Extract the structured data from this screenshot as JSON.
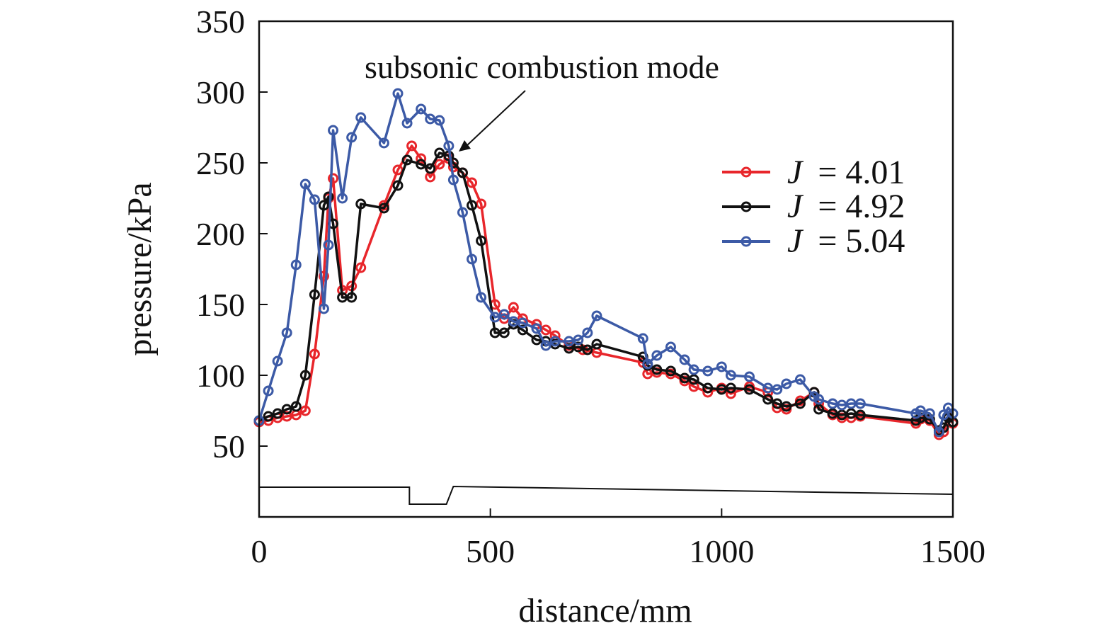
{
  "chart_data": {
    "type": "line",
    "title": "",
    "xlabel": "distance/mm",
    "ylabel": "pressure/kPa",
    "xlim": [
      0,
      1500
    ],
    "ylim": [
      0,
      350
    ],
    "xticks": [
      0,
      500,
      1000,
      1500
    ],
    "yticks": [
      50,
      100,
      150,
      200,
      250,
      300,
      350
    ],
    "grid": false,
    "legend_position": "right",
    "annotation": {
      "text": "subsonic combustion mode",
      "points_to": {
        "x": 440,
        "y": 260
      }
    },
    "geometry_outline": [
      [
        0,
        21
      ],
      [
        325,
        21
      ],
      [
        325,
        9
      ],
      [
        405,
        9
      ],
      [
        420,
        21.5
      ],
      [
        1500,
        16
      ]
    ],
    "series": [
      {
        "name": "J = 4.01",
        "legend_symbol": "J",
        "legend_value": "= 4.01",
        "color": "#e8262b",
        "x": [
          0,
          20,
          40,
          60,
          80,
          100,
          120,
          140,
          150,
          160,
          180,
          200,
          220,
          270,
          300,
          330,
          350,
          370,
          390,
          410,
          420,
          440,
          460,
          480,
          510,
          530,
          550,
          570,
          600,
          620,
          640,
          670,
          700,
          730,
          830,
          840,
          860,
          890,
          920,
          940,
          970,
          1000,
          1020,
          1060,
          1100,
          1120,
          1140,
          1170,
          1200,
          1210,
          1240,
          1260,
          1280,
          1300,
          1420,
          1430,
          1450,
          1470,
          1480,
          1490,
          1500
        ],
        "y": [
          67,
          68,
          70,
          71,
          72,
          75,
          115,
          170,
          225,
          239,
          160,
          163,
          176,
          220,
          245,
          262,
          253,
          240,
          249,
          253,
          247,
          243,
          236,
          221,
          150,
          140,
          148,
          140,
          136,
          132,
          128,
          121,
          118,
          116,
          109,
          101,
          102,
          101,
          96,
          92,
          88,
          91,
          87,
          92,
          88,
          77,
          76,
          82,
          88,
          80,
          72,
          70,
          70,
          71,
          66,
          69,
          68,
          58,
          60,
          71,
          66
        ]
      },
      {
        "name": "J = 4.92",
        "legend_symbol": "J",
        "legend_value": "= 4.92",
        "color": "#111111",
        "x": [
          0,
          20,
          40,
          60,
          80,
          100,
          120,
          140,
          150,
          160,
          180,
          200,
          220,
          270,
          300,
          320,
          350,
          370,
          390,
          410,
          420,
          440,
          460,
          480,
          510,
          530,
          550,
          570,
          600,
          620,
          640,
          670,
          690,
          710,
          730,
          830,
          840,
          860,
          890,
          920,
          940,
          970,
          1000,
          1020,
          1060,
          1100,
          1120,
          1140,
          1170,
          1200,
          1210,
          1240,
          1260,
          1280,
          1300,
          1420,
          1430,
          1450,
          1470,
          1480,
          1490,
          1500
        ],
        "y": [
          68,
          71,
          73,
          76,
          78,
          100,
          157,
          220,
          226,
          207,
          155,
          155,
          221,
          218,
          234,
          252,
          249,
          246,
          257,
          255,
          250,
          243,
          220,
          195,
          130,
          130,
          136,
          132,
          125,
          124,
          122,
          119,
          120,
          118,
          122,
          113,
          107,
          104,
          103,
          98,
          97,
          91,
          90,
          91,
          90,
          83,
          80,
          78,
          80,
          88,
          76,
          73,
          72,
          73,
          72,
          68,
          70,
          69,
          61,
          63,
          70,
          67
        ]
      },
      {
        "name": "J = 5.04",
        "legend_symbol": "J",
        "legend_value": "= 5.04",
        "color": "#3c5aa6",
        "x": [
          0,
          20,
          40,
          60,
          80,
          100,
          120,
          140,
          150,
          160,
          180,
          200,
          220,
          270,
          300,
          320,
          350,
          370,
          390,
          410,
          420,
          440,
          460,
          480,
          510,
          530,
          550,
          570,
          600,
          620,
          640,
          670,
          690,
          710,
          730,
          830,
          840,
          860,
          890,
          920,
          940,
          970,
          1000,
          1020,
          1060,
          1100,
          1120,
          1140,
          1170,
          1200,
          1210,
          1240,
          1260,
          1280,
          1300,
          1420,
          1430,
          1450,
          1470,
          1480,
          1490,
          1500
        ],
        "y": [
          68,
          89,
          110,
          130,
          178,
          235,
          224,
          147,
          192,
          273,
          225,
          268,
          282,
          264,
          299,
          278,
          288,
          281,
          280,
          262,
          238,
          215,
          182,
          155,
          141,
          143,
          138,
          137,
          133,
          121,
          124,
          124,
          125,
          130,
          142,
          126,
          108,
          114,
          120,
          111,
          104,
          103,
          106,
          100,
          99,
          91,
          90,
          94,
          97,
          85,
          83,
          80,
          79,
          80,
          80,
          73,
          75,
          73,
          60,
          72,
          77,
          73
        ]
      }
    ]
  }
}
